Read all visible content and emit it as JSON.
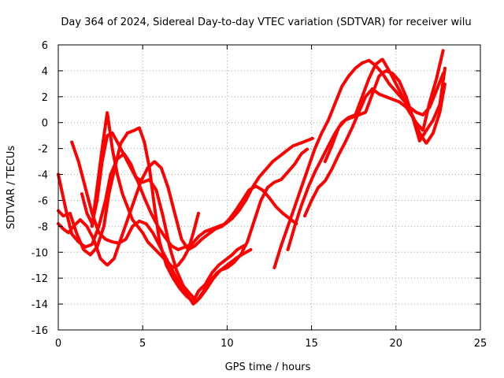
{
  "chart_data": {
    "type": "scatter",
    "title": "Day 364 of 2024, Sidereal Day-to-day VTEC variation (SDTVAR) for receiver wilu",
    "xlabel": "GPS time / hours",
    "ylabel": "SDTVAR / TECUs",
    "xlim": [
      0,
      25
    ],
    "ylim": [
      -16,
      6
    ],
    "xticks": [
      0,
      5,
      10,
      15,
      20,
      25
    ],
    "yticks": [
      -16,
      -14,
      -12,
      -10,
      -8,
      -6,
      -4,
      -2,
      0,
      2,
      4,
      6
    ],
    "grid": true,
    "marker": "plus",
    "color": "#ff0000",
    "series": [
      {
        "x": [
          0.0,
          0.3,
          0.7,
          1.1,
          1.5,
          1.9,
          2.3,
          2.7,
          3.0,
          3.4,
          3.7,
          4.1,
          4.5,
          4.8,
          5.1,
          5.4,
          5.7,
          6.0,
          6.4,
          6.8,
          7.2,
          7.6,
          8.0,
          8.3,
          8.7,
          9.1,
          9.5,
          9.9,
          10.3,
          10.6,
          11.0
        ],
        "y": [
          -6.8,
          -7.2,
          -7.0,
          -8.6,
          -9.8,
          -10.2,
          -9.6,
          -8.0,
          -5.5,
          -3.2,
          -1.6,
          -0.8,
          -0.6,
          -0.4,
          -1.5,
          -3.5,
          -6.5,
          -9.2,
          -11.0,
          -12.0,
          -12.8,
          -13.4,
          -13.8,
          -13.0,
          -12.5,
          -11.6,
          -11.0,
          -10.6,
          -10.2,
          -9.8,
          -9.5
        ]
      },
      {
        "x": [
          0.0,
          0.2,
          0.5,
          0.8,
          1.2,
          1.6,
          2.0,
          2.4,
          2.8,
          3.1,
          3.5,
          3.9,
          4.3,
          4.6,
          5.0,
          5.4,
          5.8,
          6.2,
          6.6,
          7.0,
          7.4,
          7.8,
          8.2,
          8.6,
          9.0,
          9.4,
          9.8,
          10.2,
          10.6,
          11.0,
          11.4
        ],
        "y": [
          -4.0,
          -5.2,
          -7.0,
          -8.6,
          -9.2,
          -9.6,
          -9.4,
          -8.0,
          -6.0,
          -4.0,
          -2.8,
          -2.4,
          -3.2,
          -4.2,
          -4.6,
          -4.4,
          -5.2,
          -7.2,
          -9.6,
          -11.4,
          -12.6,
          -13.2,
          -13.8,
          -13.0,
          -12.2,
          -11.6,
          -11.2,
          -10.8,
          -10.4,
          -10.1,
          -9.8
        ]
      },
      {
        "x": [
          0.0,
          0.3,
          0.6,
          0.9,
          1.3,
          1.7,
          2.1,
          2.5,
          2.9,
          3.3,
          3.7,
          4.1,
          4.5,
          4.9,
          5.3,
          5.7,
          6.1,
          6.5,
          6.9,
          7.3,
          7.7,
          8.1,
          8.5,
          8.9,
          9.3,
          9.7,
          10.1,
          10.5,
          10.9,
          11.3,
          11.7,
          12.1,
          12.5,
          12.9,
          13.3,
          13.7,
          14.1
        ],
        "y": [
          -7.8,
          -8.2,
          -8.5,
          -8.0,
          -7.5,
          -8.0,
          -9.0,
          -10.5,
          -11.0,
          -10.5,
          -9.0,
          -7.5,
          -6.0,
          -4.5,
          -3.5,
          -3.0,
          -3.5,
          -5.0,
          -7.0,
          -9.0,
          -9.8,
          -9.5,
          -9.0,
          -8.6,
          -8.2,
          -8.0,
          -7.5,
          -6.8,
          -6.0,
          -5.2,
          -4.9,
          -5.2,
          -5.8,
          -6.5,
          -7.0,
          -7.4,
          -7.8
        ]
      },
      {
        "x": [
          0.8,
          1.2,
          1.6,
          2.0,
          2.4,
          2.8,
          3.2,
          3.6,
          4.0,
          4.4,
          4.8,
          5.2,
          5.6,
          6.0,
          6.4,
          6.8,
          7.2,
          7.6,
          8.0,
          8.4,
          8.8,
          9.2,
          9.6,
          10.0,
          10.4,
          10.8,
          11.2,
          11.6,
          12.0,
          12.4,
          12.8,
          13.2,
          13.6,
          14.0,
          14.4,
          14.8
        ],
        "y": [
          -1.5,
          -3.0,
          -5.0,
          -7.0,
          -8.5,
          -9.0,
          -9.2,
          -9.3,
          -9.0,
          -8.0,
          -7.6,
          -7.8,
          -8.5,
          -9.5,
          -10.5,
          -11.5,
          -12.5,
          -13.2,
          -14.0,
          -13.5,
          -12.8,
          -12.0,
          -11.4,
          -11.2,
          -10.8,
          -10.2,
          -9.2,
          -7.6,
          -6.0,
          -5.0,
          -4.6,
          -4.4,
          -3.8,
          -3.2,
          -2.4,
          -2.0
        ]
      },
      {
        "x": [
          1.4,
          1.7,
          2.0,
          2.3,
          2.6,
          2.9,
          3.2,
          3.5,
          3.9,
          4.3,
          4.7,
          5.1,
          5.5,
          5.9,
          6.3,
          6.7,
          7.1,
          7.5,
          7.9,
          8.3,
          8.7,
          9.1,
          9.5,
          9.9,
          10.3,
          10.7,
          11.1,
          11.5,
          11.9,
          12.3,
          12.7,
          13.1,
          13.5,
          13.9,
          14.3,
          14.7,
          15.1
        ],
        "y": [
          -5.5,
          -7.0,
          -7.8,
          -6.0,
          -3.0,
          -1.0,
          -0.8,
          -1.5,
          -2.5,
          -3.5,
          -4.5,
          -5.8,
          -7.0,
          -8.0,
          -8.8,
          -9.5,
          -9.8,
          -9.6,
          -9.4,
          -8.8,
          -8.4,
          -8.2,
          -8.0,
          -7.8,
          -7.4,
          -6.8,
          -6.0,
          -5.0,
          -4.2,
          -3.6,
          -3.0,
          -2.6,
          -2.2,
          -1.8,
          -1.6,
          -1.4,
          -1.2
        ]
      },
      {
        "x": [
          2.0,
          2.3,
          2.6,
          2.9,
          3.2,
          3.5,
          3.8,
          4.1,
          4.4,
          4.7,
          5.0,
          5.3,
          5.6,
          5.9,
          6.2,
          6.5,
          6.8,
          7.1,
          7.4,
          7.7,
          8.0,
          8.3
        ],
        "y": [
          -8.0,
          -5.0,
          -2.0,
          0.8,
          -2.0,
          -4.0,
          -5.5,
          -6.5,
          -7.5,
          -8.0,
          -8.5,
          -9.2,
          -9.6,
          -10.0,
          -10.4,
          -10.8,
          -11.2,
          -11.0,
          -10.5,
          -9.8,
          -8.5,
          -7.0
        ]
      },
      {
        "x": [
          12.8,
          13.2,
          13.6,
          14.0,
          14.4,
          14.8,
          15.2,
          15.6,
          16.0,
          16.4,
          16.8,
          17.2,
          17.6,
          18.0,
          18.4,
          18.8,
          19.2,
          19.6,
          20.0,
          20.4,
          20.8,
          21.2,
          21.6,
          22.0,
          22.4,
          22.8
        ],
        "y": [
          -11.2,
          -9.5,
          -8.0,
          -6.5,
          -5.0,
          -3.5,
          -2.0,
          -0.8,
          0.2,
          1.5,
          2.8,
          3.6,
          4.2,
          4.6,
          4.8,
          4.4,
          3.8,
          3.0,
          2.4,
          1.8,
          1.2,
          0.8,
          0.6,
          1.2,
          2.5,
          3.8
        ]
      },
      {
        "x": [
          13.6,
          14.0,
          14.4,
          14.8,
          15.2,
          15.6,
          16.0,
          16.4,
          16.8,
          17.2,
          17.6,
          18.0,
          18.4,
          18.8,
          19.2,
          19.6,
          20.0,
          20.4,
          20.8,
          21.2,
          21.6,
          22.0,
          22.4,
          22.8
        ],
        "y": [
          -9.8,
          -8.0,
          -6.4,
          -5.0,
          -3.8,
          -2.8,
          -1.8,
          -0.8,
          0.0,
          0.4,
          0.6,
          2.0,
          3.4,
          4.5,
          4.9,
          4.0,
          3.0,
          2.0,
          0.8,
          0.0,
          -0.6,
          1.6,
          3.4,
          5.6
        ]
      },
      {
        "x": [
          14.6,
          15.0,
          15.4,
          15.8,
          16.2,
          16.6,
          17.0,
          17.4,
          17.8,
          18.2,
          18.6,
          19.0,
          19.4,
          19.8,
          20.2,
          20.6,
          21.0,
          21.4,
          21.8,
          22.2,
          22.6,
          22.9
        ],
        "y": [
          -7.2,
          -6.0,
          -5.0,
          -4.5,
          -3.6,
          -2.5,
          -1.5,
          -0.4,
          0.8,
          2.0,
          2.6,
          2.2,
          2.0,
          1.8,
          1.6,
          1.2,
          0.5,
          -0.8,
          -1.6,
          -0.8,
          0.8,
          3.0
        ]
      },
      {
        "x": [
          15.8,
          16.2,
          16.6,
          17.0,
          17.4,
          17.8,
          18.2,
          18.6,
          19.0,
          19.4,
          19.8,
          20.2,
          20.6,
          21.0,
          21.4,
          21.8,
          22.2,
          22.6,
          22.9
        ],
        "y": [
          -3.0,
          -1.8,
          -0.4,
          0.2,
          0.4,
          0.6,
          0.8,
          2.2,
          3.6,
          4.0,
          3.8,
          3.2,
          2.0,
          0.4,
          -1.4,
          -0.6,
          0.2,
          1.4,
          4.2
        ]
      }
    ]
  }
}
